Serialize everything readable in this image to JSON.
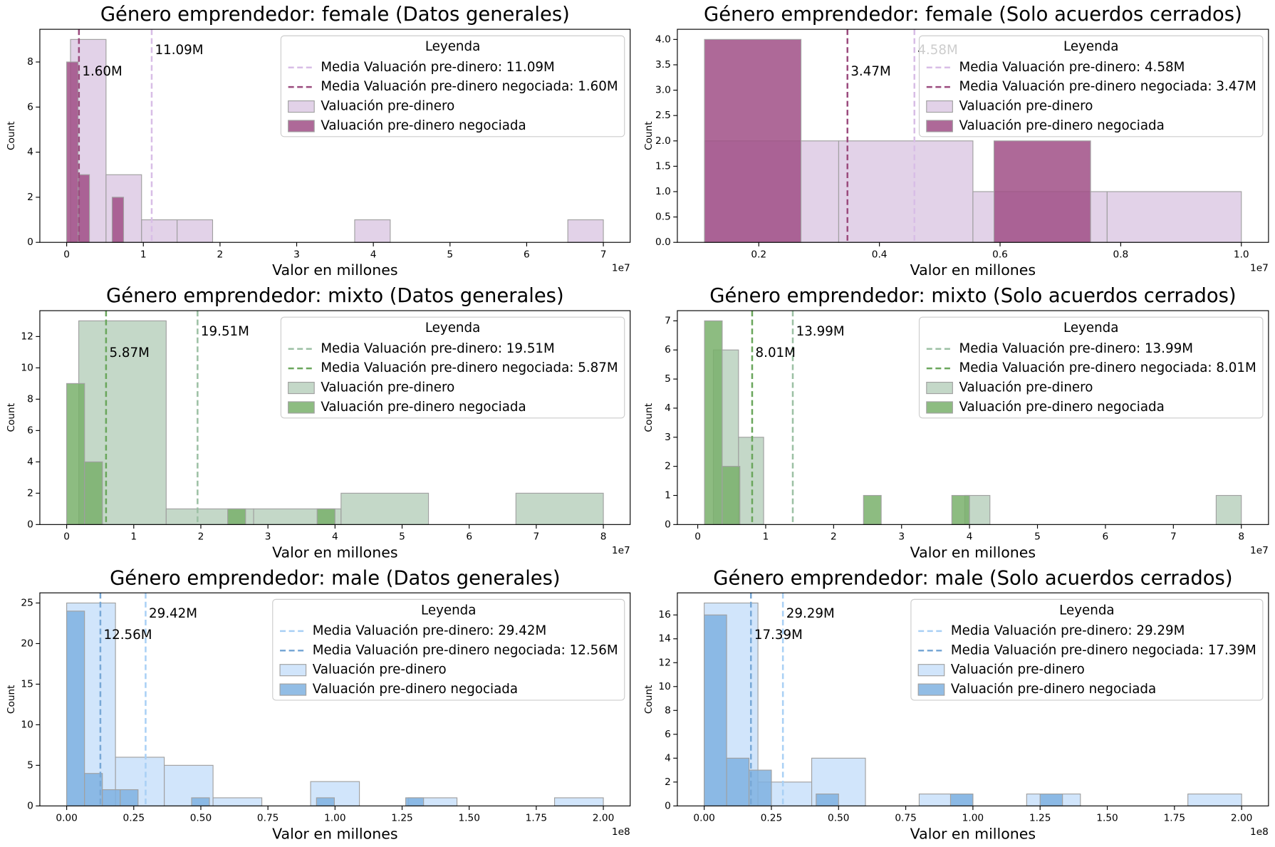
{
  "chart_data": [
    {
      "type": "histogram",
      "title": "Género emprendedor: female (Datos generales)",
      "xlabel": "Valor en millones",
      "ylabel": "Count",
      "x_offset_label": "1e7",
      "xlim": [
        -3500000,
        73500000
      ],
      "ylim": [
        0,
        9.45
      ],
      "xticks": [
        0,
        {
          "value": 10000000,
          "label": "1"
        },
        {
          "value": 20000000,
          "label": "2"
        },
        {
          "value": 30000000,
          "label": "3"
        },
        {
          "value": 40000000,
          "label": "4"
        },
        {
          "value": 50000000,
          "label": "5"
        },
        {
          "value": 60000000,
          "label": "6"
        },
        {
          "value": 70000000,
          "label": "7"
        }
      ],
      "yticks": [
        0,
        2,
        4,
        6,
        8
      ],
      "legend_title": "Leyenda",
      "legend": "upper right",
      "series": [
        {
          "name": "Valuación pre-dinero",
          "color": "#d8c3e0",
          "bins": [
            500000,
            5133333,
            9766667,
            14400000,
            19033333,
            23666667,
            28300000,
            32933333,
            37566667,
            42200000,
            46833333,
            51466667,
            56100000,
            60733333,
            65366667,
            70000000
          ],
          "values": [
            9,
            3,
            1,
            1,
            0,
            0,
            0,
            0,
            1,
            0,
            0,
            0,
            0,
            0,
            1
          ]
        },
        {
          "name": "Valuación pre-dinero negociada",
          "color": "#a04f86",
          "bins": [
            0,
            1484000,
            2968000,
            4452000,
            5936000,
            7420000
          ],
          "values": [
            8,
            3,
            0,
            0,
            2
          ]
        }
      ],
      "mean_lines": [
        {
          "name": "Media Valuación pre-dinero: 11.09M",
          "annotation": "11.09M",
          "value": 11090000,
          "color": "#d8bde6"
        },
        {
          "name": "Media Valuación pre-dinero negociada: 1.60M",
          "annotation": "1.60M",
          "value": 1600000,
          "color": "#9b4b7e"
        }
      ]
    },
    {
      "type": "histogram",
      "title": "Género emprendedor: female (Solo acuerdos cerrados)",
      "xlabel": "Valor en millones",
      "ylabel": "Count",
      "x_offset_label": "1e7",
      "xlim": [
        650000,
        10450000
      ],
      "ylim": [
        0,
        4.2
      ],
      "xticks": [
        {
          "value": 2000000,
          "label": "0.2"
        },
        {
          "value": 4000000,
          "label": "0.4"
        },
        {
          "value": 6000000,
          "label": "0.6"
        },
        {
          "value": 8000000,
          "label": "0.8"
        },
        {
          "value": 10000000,
          "label": "1.0"
        }
      ],
      "yticks": [
        {
          "value": 0,
          "label": "0.0"
        },
        {
          "value": 0.5,
          "label": "0.5"
        },
        {
          "value": 1,
          "label": "1.0"
        },
        {
          "value": 1.5,
          "label": "1.5"
        },
        {
          "value": 2,
          "label": "2.0"
        },
        {
          "value": 2.5,
          "label": "2.5"
        },
        {
          "value": 3,
          "label": "3.0"
        },
        {
          "value": 3.5,
          "label": "3.5"
        },
        {
          "value": 4,
          "label": "4.0"
        }
      ],
      "legend_title": "Leyenda",
      "legend": "upper right",
      "series": [
        {
          "name": "Valuación pre-dinero",
          "color": "#d8c3e0",
          "bins": [
            1100000,
            3325000,
            5550000,
            7775000,
            10000000
          ],
          "values": [
            2,
            2,
            1,
            1
          ]
        },
        {
          "name": "Valuación pre-dinero negociada",
          "color": "#a04f86",
          "bins": [
            1100000,
            2700000,
            4300000,
            5900000,
            7500000
          ],
          "values": [
            4,
            0,
            0,
            2
          ]
        }
      ],
      "mean_lines": [
        {
          "name": "Media Valuación pre-dinero: 4.58M",
          "annotation": "4.58M",
          "value": 4580000,
          "color": "#d8bde6"
        },
        {
          "name": "Media Valuación pre-dinero negociada: 3.47M",
          "annotation": "3.47M",
          "value": 3470000,
          "color": "#9b4b7e"
        }
      ]
    },
    {
      "type": "histogram",
      "title": "Género emprendedor: mixto (Datos generales)",
      "xlabel": "Valor en millones",
      "ylabel": "Count",
      "x_offset_label": "1e7",
      "xlim": [
        -4000000,
        84000000
      ],
      "ylim": [
        0,
        13.65
      ],
      "xticks": [
        0,
        {
          "value": 10000000,
          "label": "1"
        },
        {
          "value": 20000000,
          "label": "2"
        },
        {
          "value": 30000000,
          "label": "3"
        },
        {
          "value": 40000000,
          "label": "4"
        },
        {
          "value": 50000000,
          "label": "5"
        },
        {
          "value": 60000000,
          "label": "6"
        },
        {
          "value": 70000000,
          "label": "7"
        },
        {
          "value": 80000000,
          "label": "8"
        }
      ],
      "yticks": [
        0,
        2,
        4,
        6,
        8,
        10,
        12
      ],
      "legend_title": "Leyenda",
      "legend": "upper right",
      "series": [
        {
          "name": "Valuación pre-dinero",
          "color": "#b0cbb6",
          "bins": [
            1800000,
            14833333,
            27866667,
            40900000,
            53933333,
            66966667,
            80000000
          ],
          "values": [
            13,
            1,
            1,
            2,
            0,
            2
          ]
        },
        {
          "name": "Valuación pre-dinero negociada",
          "color": "#79b06b",
          "bins": [
            0,
            2666667,
            5333333,
            8000000,
            10666667,
            13333333,
            16000000,
            18666667,
            21333333,
            24000000,
            26666667,
            29333333,
            32000000,
            34666667,
            37333333,
            40000000
          ],
          "values": [
            9,
            4,
            0,
            0,
            0,
            0,
            0,
            0,
            0,
            1,
            0,
            0,
            0,
            0,
            1
          ]
        }
      ],
      "mean_lines": [
        {
          "name": "Media Valuación pre-dinero: 19.51M",
          "annotation": "19.51M",
          "value": 19510000,
          "color": "#9cc0a4"
        },
        {
          "name": "Media Valuación pre-dinero negociada: 5.87M",
          "annotation": "5.87M",
          "value": 5870000,
          "color": "#6aa65c"
        }
      ]
    },
    {
      "type": "histogram",
      "title": "Género emprendedor: mixto (Solo acuerdos cerrados)",
      "xlabel": "Valor en millones",
      "ylabel": "Count",
      "x_offset_label": "1e7",
      "xlim": [
        -3000000,
        84000000
      ],
      "ylim": [
        0,
        7.35
      ],
      "xticks": [
        0,
        {
          "value": 10000000,
          "label": "1"
        },
        {
          "value": 20000000,
          "label": "2"
        },
        {
          "value": 30000000,
          "label": "3"
        },
        {
          "value": 40000000,
          "label": "4"
        },
        {
          "value": 50000000,
          "label": "5"
        },
        {
          "value": 60000000,
          "label": "6"
        },
        {
          "value": 70000000,
          "label": "7"
        },
        {
          "value": 80000000,
          "label": "8"
        }
      ],
      "yticks": [
        0,
        1,
        2,
        3,
        4,
        5,
        6,
        7
      ],
      "legend_title": "Leyenda",
      "legend": "upper right",
      "series": [
        {
          "name": "Valuación pre-dinero",
          "color": "#b0cbb6",
          "bins": [
            2300000,
            6000000,
            9700000,
            13400000,
            17100000,
            20800000,
            24500000,
            28200000,
            31900000,
            35600000,
            39300000,
            43000000,
            46700000,
            50400000,
            54100000,
            57800000,
            61500000,
            65200000,
            68900000,
            72600000,
            76300000,
            80000000
          ],
          "values": [
            6,
            3,
            0,
            0,
            0,
            0,
            0,
            0,
            0,
            0,
            1,
            0,
            0,
            0,
            0,
            0,
            0,
            0,
            0,
            0,
            1
          ]
        },
        {
          "name": "Valuación pre-dinero negociada",
          "color": "#79b06b",
          "bins": [
            1000000,
            3600000,
            6200000,
            8800000,
            11400000,
            14000000,
            16600000,
            19200000,
            21800000,
            24400000,
            27000000,
            29600000,
            32200000,
            34800000,
            37400000,
            40000000
          ],
          "values": [
            7,
            2,
            0,
            0,
            0,
            0,
            0,
            0,
            0,
            1,
            0,
            0,
            0,
            0,
            1
          ]
        }
      ],
      "mean_lines": [
        {
          "name": "Media Valuación pre-dinero: 13.99M",
          "annotation": "13.99M",
          "value": 13990000,
          "color": "#9cc0a4"
        },
        {
          "name": "Media Valuación pre-dinero negociada: 8.01M",
          "annotation": "8.01M",
          "value": 8010000,
          "color": "#6aa65c"
        }
      ]
    },
    {
      "type": "histogram",
      "title": "Género emprendedor: male (Datos generales)",
      "xlabel": "Valor en millones",
      "ylabel": "Count",
      "x_offset_label": "1e8",
      "xlim": [
        -10000000,
        210000000
      ],
      "ylim": [
        0,
        26.25
      ],
      "xticks": [
        {
          "value": 0,
          "label": "0.00"
        },
        {
          "value": 25000000,
          "label": "0.25"
        },
        {
          "value": 50000000,
          "label": "0.50"
        },
        {
          "value": 75000000,
          "label": "0.75"
        },
        {
          "value": 100000000,
          "label": "1.00"
        },
        {
          "value": 125000000,
          "label": "1.25"
        },
        {
          "value": 150000000,
          "label": "1.50"
        },
        {
          "value": 175000000,
          "label": "1.75"
        },
        {
          "value": 200000000,
          "label": "2.00"
        }
      ],
      "yticks": [
        0,
        5,
        10,
        15,
        20,
        25
      ],
      "legend_title": "Leyenda",
      "legend": "upper right",
      "series": [
        {
          "name": "Valuación pre-dinero",
          "color": "#c2dcfa",
          "bins": [
            0,
            18181818,
            36363636,
            54545455,
            72727273,
            90909091,
            109090909,
            127272727,
            145454545,
            163636364,
            181818182,
            200000000
          ],
          "values": [
            25,
            6,
            5,
            1,
            0,
            3,
            0,
            1,
            0,
            0,
            1
          ]
        },
        {
          "name": "Valuación pre-dinero negociada",
          "color": "#7fb1e0",
          "bins": [
            0,
            6650000,
            13300000,
            19950000,
            26600000,
            33250000,
            39900000,
            46550000,
            53200000,
            59850000,
            66500000,
            73150000,
            79800000,
            86450000,
            93100000,
            99750000,
            106400000,
            113050000,
            119700000,
            126350000,
            133000000
          ],
          "values": [
            24,
            4,
            2,
            2,
            0,
            0,
            0,
            1,
            0,
            0,
            0,
            0,
            0,
            0,
            1,
            0,
            0,
            0,
            0,
            1
          ]
        }
      ],
      "mean_lines": [
        {
          "name": "Media Valuación pre-dinero: 29.42M",
          "annotation": "29.42M",
          "value": 29420000,
          "color": "#a9d0f5"
        },
        {
          "name": "Media Valuación pre-dinero negociada: 12.56M",
          "annotation": "12.56M",
          "value": 12560000,
          "color": "#78a8d6"
        }
      ]
    },
    {
      "type": "histogram",
      "title": "Género emprendedor: male (Solo acuerdos cerrados)",
      "xlabel": "Valor en millones",
      "ylabel": "Count",
      "x_offset_label": "1e8",
      "xlim": [
        -10000000,
        210000000
      ],
      "ylim": [
        0,
        17.85
      ],
      "xticks": [
        {
          "value": 0,
          "label": "0.00"
        },
        {
          "value": 25000000,
          "label": "0.25"
        },
        {
          "value": 50000000,
          "label": "0.50"
        },
        {
          "value": 75000000,
          "label": "0.75"
        },
        {
          "value": 100000000,
          "label": "1.00"
        },
        {
          "value": 125000000,
          "label": "1.25"
        },
        {
          "value": 150000000,
          "label": "1.50"
        },
        {
          "value": 175000000,
          "label": "1.75"
        },
        {
          "value": 200000000,
          "label": "2.00"
        }
      ],
      "yticks": [
        0,
        2,
        4,
        6,
        8,
        10,
        12,
        14,
        16
      ],
      "legend_title": "Leyenda",
      "legend": "upper right",
      "series": [
        {
          "name": "Valuación pre-dinero",
          "color": "#c2dcfa",
          "bins": [
            0,
            20000000,
            40000000,
            60000000,
            80000000,
            100000000,
            120000000,
            140000000,
            160000000,
            180000000,
            200000000
          ],
          "values": [
            17,
            2,
            4,
            0,
            1,
            0,
            1,
            0,
            0,
            1
          ]
        },
        {
          "name": "Valuación pre-dinero negociada",
          "color": "#7fb1e0",
          "bins": [
            0,
            8333333,
            16666667,
            25000000,
            33333333,
            41666667,
            50000000,
            58333333,
            66666667,
            75000000,
            83333333,
            91666667,
            100000000,
            108333333,
            116666667,
            125000000,
            133333333
          ],
          "values": [
            16,
            4,
            3,
            0,
            0,
            1,
            0,
            0,
            0,
            0,
            0,
            1,
            0,
            0,
            0,
            1
          ]
        }
      ],
      "mean_lines": [
        {
          "name": "Media Valuación pre-dinero: 29.29M",
          "annotation": "29.29M",
          "value": 29290000,
          "color": "#a9d0f5"
        },
        {
          "name": "Media Valuación pre-dinero negociada: 17.39M",
          "annotation": "17.39M",
          "value": 17390000,
          "color": "#78a8d6"
        }
      ]
    }
  ]
}
